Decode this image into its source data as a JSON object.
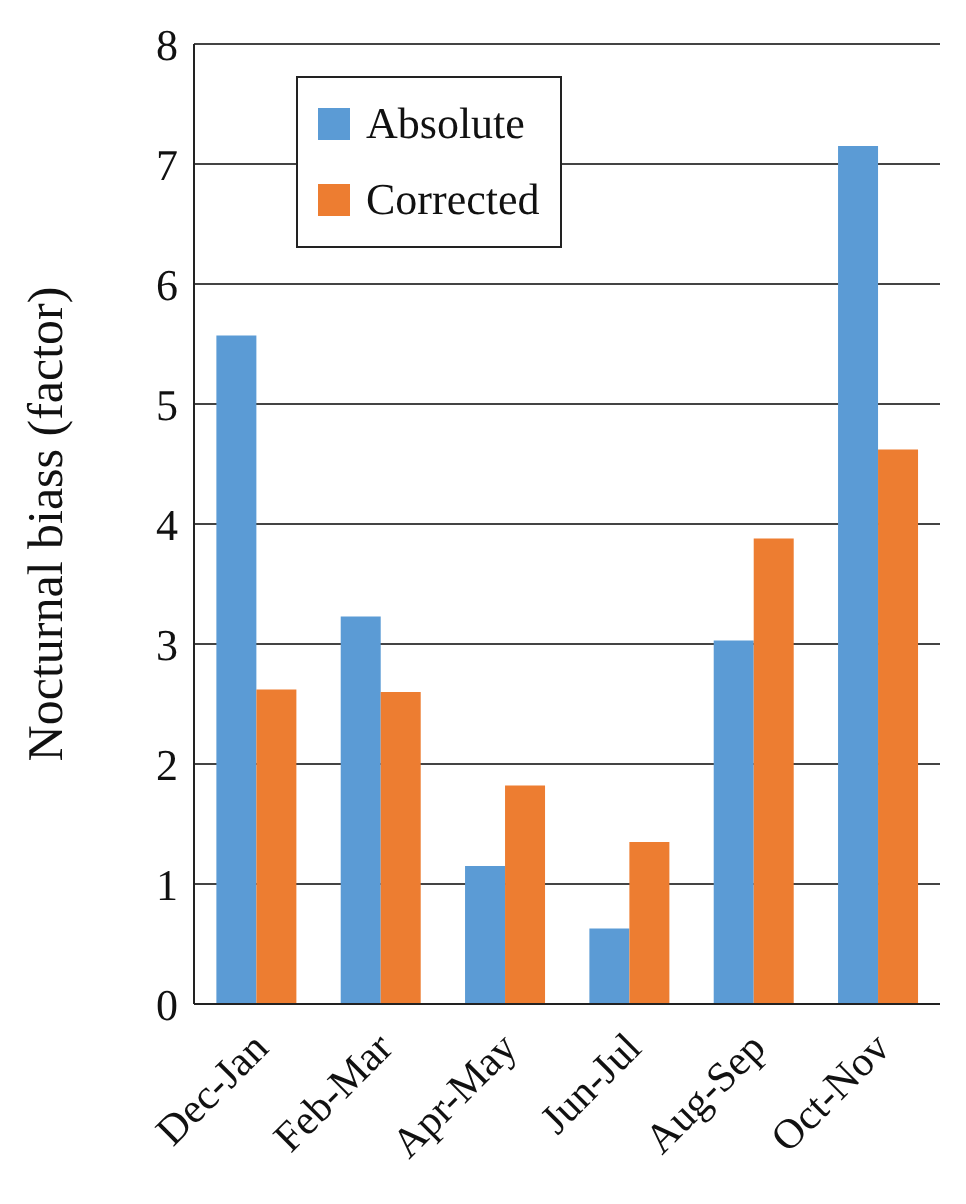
{
  "chart_data": {
    "type": "bar",
    "ylabel": "Nocturnal biass (factor)",
    "categories": [
      "Dec-Jan",
      "Feb-Mar",
      "Apr-May",
      "Jun-Jul",
      "Aug-Sep",
      "Oct-Nov"
    ],
    "series": [
      {
        "name": "Absolute",
        "color": "#5b9bd5",
        "values": [
          5.57,
          3.23,
          1.15,
          0.63,
          3.03,
          7.15
        ]
      },
      {
        "name": "Corrected",
        "color": "#ed7d31",
        "values": [
          2.62,
          2.6,
          1.82,
          1.35,
          3.88,
          4.62
        ]
      }
    ],
    "ylim": [
      0,
      8
    ],
    "yticks": [
      0,
      1,
      2,
      3,
      4,
      5,
      6,
      7,
      8
    ],
    "grid": "y",
    "legend": "top left"
  }
}
